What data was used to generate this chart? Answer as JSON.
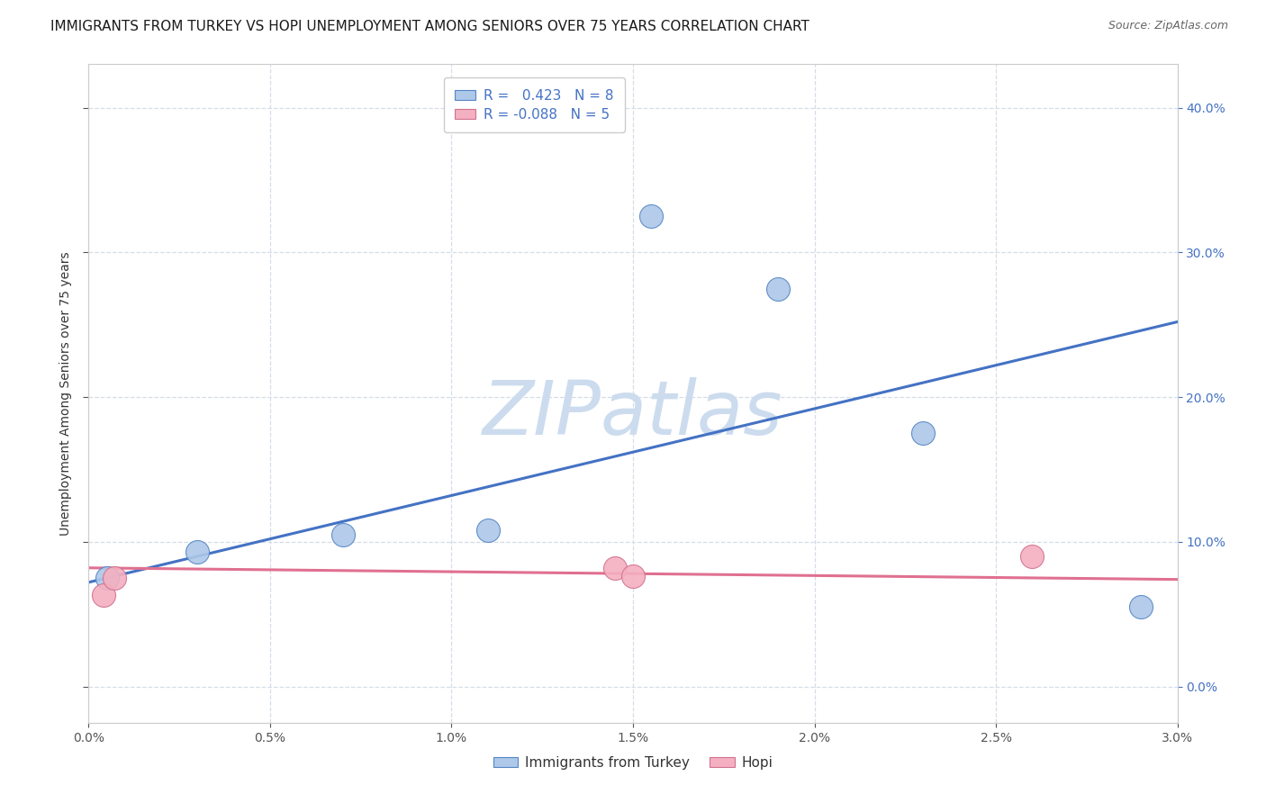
{
  "title": "IMMIGRANTS FROM TURKEY VS HOPI UNEMPLOYMENT AMONG SENIORS OVER 75 YEARS CORRELATION CHART",
  "source": "Source: ZipAtlas.com",
  "ylabel": "Unemployment Among Seniors over 75 years",
  "xlim": [
    0.0,
    0.03
  ],
  "ylim": [
    -0.025,
    0.43
  ],
  "xticks": [
    0.0,
    0.005,
    0.01,
    0.015,
    0.02,
    0.025,
    0.03
  ],
  "yticks": [
    0.0,
    0.1,
    0.2,
    0.3,
    0.4
  ],
  "blue_x": [
    0.0005,
    0.003,
    0.007,
    0.011,
    0.0155,
    0.019,
    0.023,
    0.029
  ],
  "blue_y": [
    0.075,
    0.093,
    0.105,
    0.108,
    0.325,
    0.275,
    0.175,
    0.055
  ],
  "pink_x": [
    0.0004,
    0.0007,
    0.0145,
    0.015,
    0.026
  ],
  "pink_y": [
    0.063,
    0.075,
    0.082,
    0.076,
    0.09
  ],
  "blue_line_x0": 0.0,
  "blue_line_x1": 0.03,
  "blue_line_y0": 0.072,
  "blue_line_y1": 0.252,
  "pink_line_x0": 0.0,
  "pink_line_x1": 0.03,
  "pink_line_y0": 0.082,
  "pink_line_y1": 0.074,
  "blue_face": "#adc8e8",
  "blue_edge": "#5585c5",
  "blue_line": "#4472c4",
  "pink_face": "#f4b0c0",
  "pink_edge": "#d07090",
  "pink_line": "#e07090",
  "R_blue": "0.423",
  "N_blue": "8",
  "R_pink": "-0.088",
  "N_pink": "5",
  "scatter_size": 350,
  "watermark": "ZIPatlas",
  "watermark_color": "#ccdcee",
  "bg": "#ffffff",
  "grid_color": "#d5dde8",
  "title_fs": 11,
  "ylabel_fs": 10,
  "tick_fs": 10,
  "legend_fs": 11
}
